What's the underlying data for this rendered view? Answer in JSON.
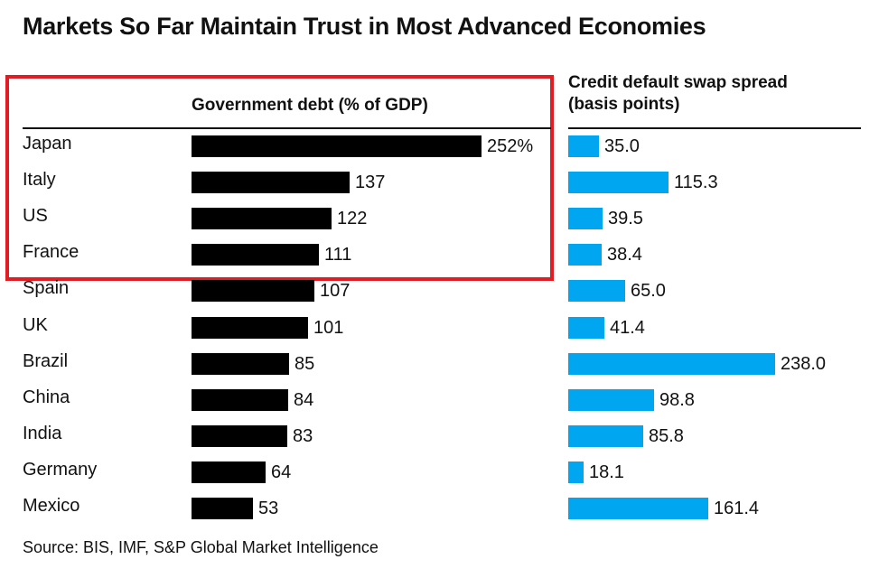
{
  "title": "Markets So Far Maintain Trust in Most Advanced Economies",
  "source": "Source: BIS, IMF, S&P Global Market Intelligence",
  "colors": {
    "debt_bar": "#000000",
    "cds_bar": "#00a6f0",
    "highlight": "#e31b23"
  },
  "highlighted_countries": [
    "Japan",
    "Italy",
    "US",
    "France"
  ],
  "chart_data": [
    {
      "type": "bar",
      "orientation": "horizontal",
      "title": "Government debt (% of GDP)",
      "categories": [
        "Japan",
        "Italy",
        "US",
        "France",
        "Spain",
        "UK",
        "Brazil",
        "China",
        "India",
        "Germany",
        "Mexico"
      ],
      "values": [
        252,
        137,
        122,
        111,
        107,
        101,
        85,
        84,
        83,
        64,
        53
      ],
      "labels": [
        "252%",
        "137",
        "122",
        "111",
        "107",
        "101",
        "85",
        "84",
        "83",
        "64",
        "53"
      ],
      "xlim": [
        0,
        252
      ],
      "grid": false
    },
    {
      "type": "bar",
      "orientation": "horizontal",
      "title": "Credit default swap spread (basis points)",
      "categories": [
        "Japan",
        "Italy",
        "US",
        "France",
        "Spain",
        "UK",
        "Brazil",
        "China",
        "India",
        "Germany",
        "Mexico"
      ],
      "values": [
        35.0,
        115.3,
        39.5,
        38.4,
        65.0,
        41.4,
        238.0,
        98.8,
        85.8,
        18.1,
        161.4
      ],
      "labels": [
        "35.0",
        "115.3",
        "39.5",
        "38.4",
        "65.0",
        "41.4",
        "238.0",
        "98.8",
        "85.8",
        "18.1",
        "161.4"
      ],
      "xlim": [
        0,
        238
      ],
      "grid": false
    }
  ]
}
